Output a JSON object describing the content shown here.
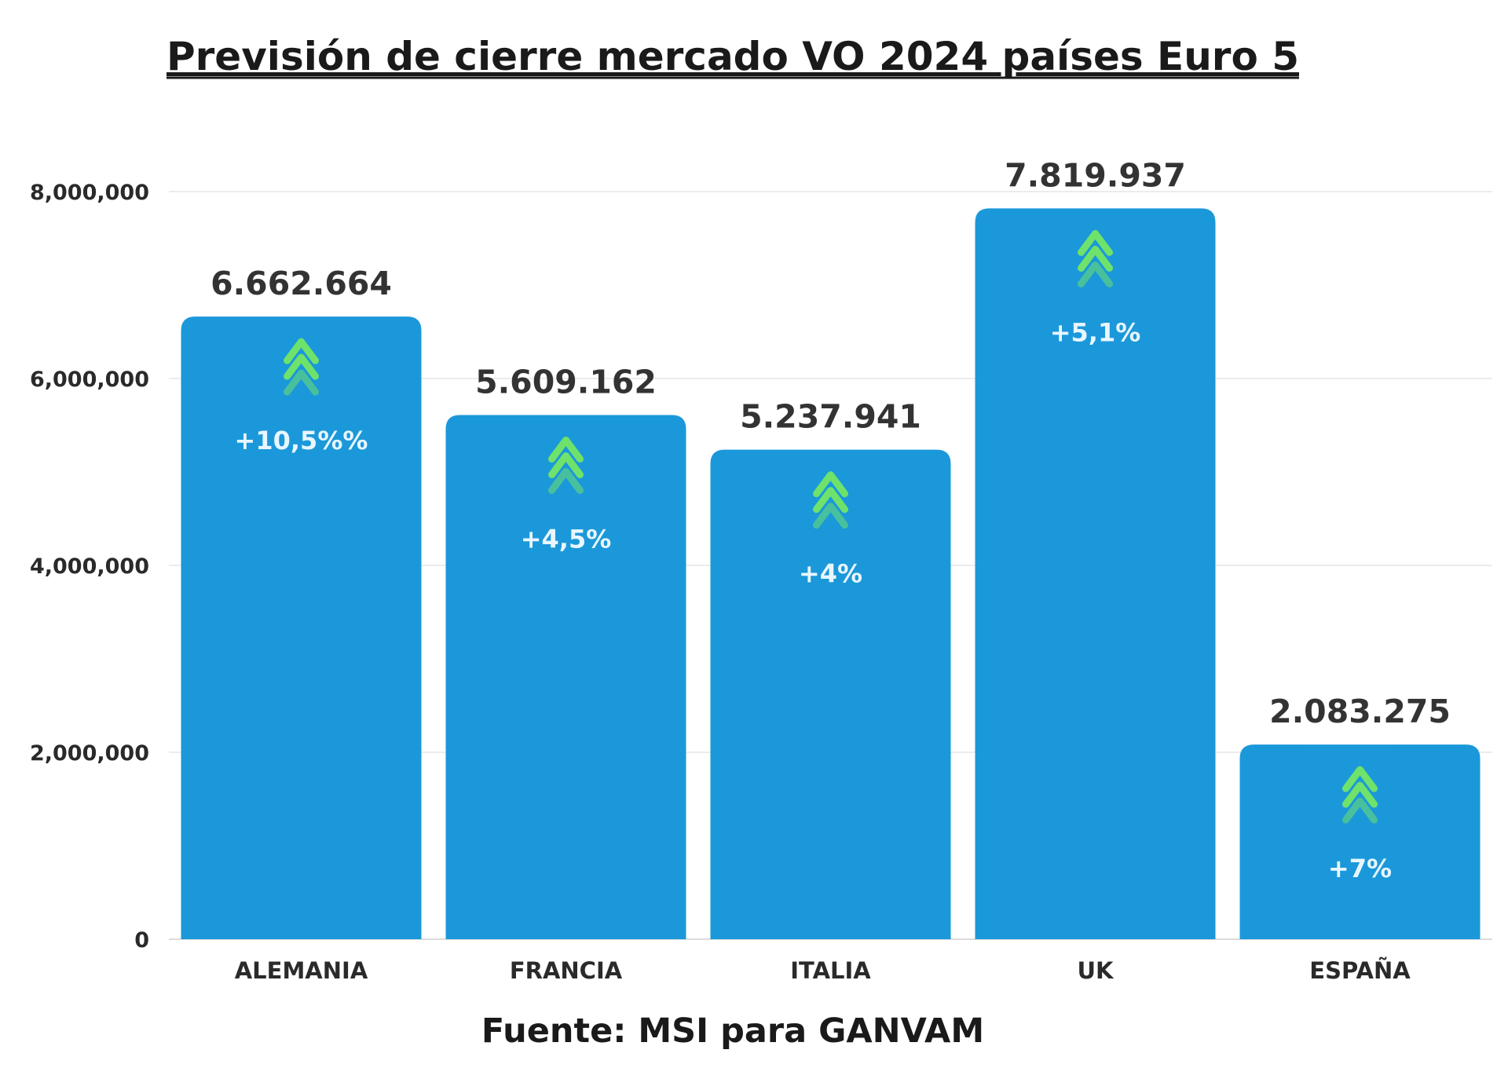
{
  "chart_data": {
    "type": "bar",
    "title": "Previsión de cierre mercado VO 2024 países Euro 5",
    "source": "Fuente: MSI para GANVAM",
    "xlabel": "",
    "ylabel": "",
    "ylim": [
      0,
      8000000
    ],
    "yticks": [
      0,
      2000000,
      4000000,
      6000000,
      8000000
    ],
    "ytick_labels": [
      "0",
      "2,000,000",
      "4,000,000",
      "6,000,000",
      "8,000,000"
    ],
    "grid": true,
    "legend": "none",
    "categories": [
      "ALEMANIA",
      "FRANCIA",
      "ITALIA",
      "UK",
      "ESPAÑA"
    ],
    "values": [
      6662664,
      5609162,
      5237941,
      7819937,
      2083275
    ],
    "value_labels": [
      "6.662.664",
      "5.609.162",
      "5.237.941",
      "7.819.937",
      "2.083.275"
    ],
    "change_labels": [
      "+10,5%%",
      "+4,5%",
      "+4%",
      "+5,1%",
      "+7%"
    ],
    "annotation_icon": "double-chevron-up-icon",
    "colors": {
      "bar": "#1b98d9",
      "arrow": "#6ee26b",
      "change_text": "#e8f6ff",
      "grid": "#ececec"
    }
  }
}
